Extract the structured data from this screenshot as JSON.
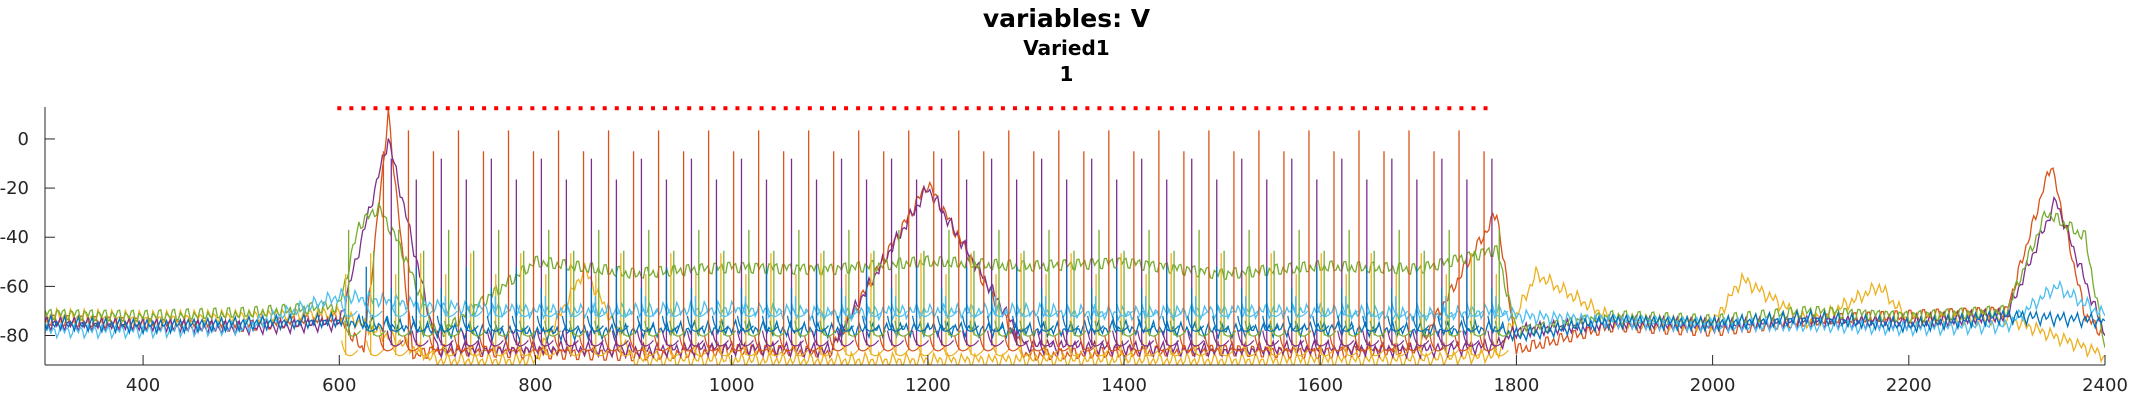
{
  "chart_data": {
    "type": "line",
    "title": "variables: V",
    "subtitle": "Varied1",
    "subtitle2": "1",
    "xlabel": "",
    "ylabel": "",
    "xlim": [
      300,
      2400
    ],
    "ylim": [
      -92,
      13
    ],
    "xticks": [
      400,
      600,
      800,
      1000,
      1200,
      1400,
      1600,
      1800,
      2000,
      2200,
      2400
    ],
    "yticks": [
      0,
      -20,
      -40,
      -60,
      -80
    ],
    "grid": false,
    "legend": "none",
    "stimulus_marker": {
      "y": 12.5,
      "x_start": 600,
      "x_end": 1780,
      "color": "#ff0000",
      "style": "dotted"
    },
    "series": [
      {
        "color": "#d95319",
        "baseline": -86,
        "burst_start": 645,
        "period": 25.5,
        "peak": 5,
        "pre_baseline": -78
      },
      {
        "color": "#edb120",
        "baseline": -88,
        "burst_start": 605,
        "period": 25.5,
        "peak": -40,
        "pre_baseline": -74
      },
      {
        "color": "#7e2f8e",
        "baseline": -84,
        "burst_start": 650,
        "period": 25.5,
        "peak": -5,
        "pre_baseline": -76
      },
      {
        "color": "#77ac30",
        "baseline": -80,
        "burst_start": 605,
        "period": 25.5,
        "peak": -30,
        "pre_baseline": -71
      },
      {
        "color": "#4dbeee",
        "baseline": -72,
        "burst_start": 600,
        "period": 25.5,
        "peak": -62,
        "pre_baseline": -78
      },
      {
        "color": "#0072bd",
        "baseline": -78,
        "burst_start": 620,
        "period": 25.5,
        "peak": -50,
        "pre_baseline": -74
      }
    ],
    "series_points": [
      {
        "color": "#d95319",
        "x": [
          300,
          400,
          500,
          600,
          625,
          650,
          675,
          700,
          800,
          900,
          1000,
          1100,
          1200,
          1300,
          1400,
          1500,
          1600,
          1700,
          1780,
          1800,
          1900,
          2000,
          2100,
          2200,
          2300,
          2345,
          2380,
          2400
        ],
        "y": [
          -74,
          -75,
          -76,
          -73,
          -86,
          10,
          -88,
          -86,
          -87,
          -88,
          -86,
          -87,
          -18,
          -88,
          -87,
          -86,
          -87,
          -85,
          -30,
          -86,
          -76,
          -78,
          -74,
          -72,
          -70,
          -10,
          -72,
          -80
        ]
      },
      {
        "color": "#edb120",
        "x": [
          300,
          400,
          500,
          600,
          700,
          800,
          850,
          900,
          1000,
          1100,
          1200,
          1300,
          1400,
          1500,
          1600,
          1700,
          1780,
          1820,
          1900,
          2000,
          2030,
          2100,
          2170,
          2200,
          2300,
          2400
        ],
        "y": [
          -72,
          -73,
          -72,
          -71,
          -90,
          -90,
          -53,
          -90,
          -90,
          -90,
          -90,
          -90,
          -90,
          -90,
          -90,
          -90,
          -88,
          -55,
          -74,
          -75,
          -57,
          -75,
          -60,
          -74,
          -73,
          -88
        ]
      },
      {
        "color": "#7e2f8e",
        "x": [
          300,
          400,
          500,
          600,
          650,
          700,
          800,
          900,
          1000,
          1100,
          1200,
          1300,
          1400,
          1500,
          1600,
          1700,
          1780,
          1800,
          1900,
          2000,
          2100,
          2200,
          2300,
          2350,
          2400
        ],
        "y": [
          -75,
          -76,
          -77,
          -75,
          0,
          -86,
          -85,
          -86,
          -85,
          -86,
          -20,
          -84,
          -85,
          -86,
          -85,
          -86,
          -84,
          -78,
          -75,
          -76,
          -74,
          -75,
          -72,
          -25,
          -80
        ]
      },
      {
        "color": "#77ac30",
        "x": [
          300,
          400,
          500,
          600,
          620,
          640,
          660,
          700,
          800,
          900,
          1000,
          1100,
          1200,
          1300,
          1400,
          1500,
          1600,
          1700,
          1780,
          1800,
          1900,
          2000,
          2100,
          2200,
          2300,
          2340,
          2380,
          2400
        ],
        "y": [
          -71,
          -72,
          -71,
          -68,
          -35,
          -28,
          -42,
          -80,
          -50,
          -55,
          -52,
          -53,
          -50,
          -52,
          -50,
          -55,
          -52,
          -53,
          -45,
          -78,
          -72,
          -74,
          -70,
          -72,
          -70,
          -30,
          -40,
          -85
        ]
      },
      {
        "color": "#4dbeee",
        "x": [
          300,
          400,
          500,
          600,
          700,
          800,
          900,
          1000,
          1100,
          1200,
          1300,
          1400,
          1500,
          1600,
          1700,
          1780,
          1800,
          1900,
          2000,
          2100,
          2200,
          2300,
          2350,
          2400
        ],
        "y": [
          -78,
          -78,
          -77,
          -64,
          -68,
          -70,
          -70,
          -69,
          -71,
          -70,
          -70,
          -71,
          -70,
          -70,
          -72,
          -70,
          -72,
          -74,
          -76,
          -76,
          -77,
          -76,
          -60,
          -72
        ]
      },
      {
        "color": "#0072bd",
        "x": [
          300,
          400,
          500,
          600,
          700,
          800,
          900,
          1000,
          1100,
          1200,
          1300,
          1400,
          1500,
          1600,
          1700,
          1780,
          1800,
          1900,
          2000,
          2100,
          2200,
          2300,
          2400
        ],
        "y": [
          -75,
          -76,
          -75,
          -74,
          -78,
          -79,
          -78,
          -77,
          -78,
          -77,
          -78,
          -77,
          -78,
          -77,
          -78,
          -77,
          -80,
          -74,
          -75,
          -73,
          -76,
          -72,
          -74
        ]
      }
    ]
  }
}
